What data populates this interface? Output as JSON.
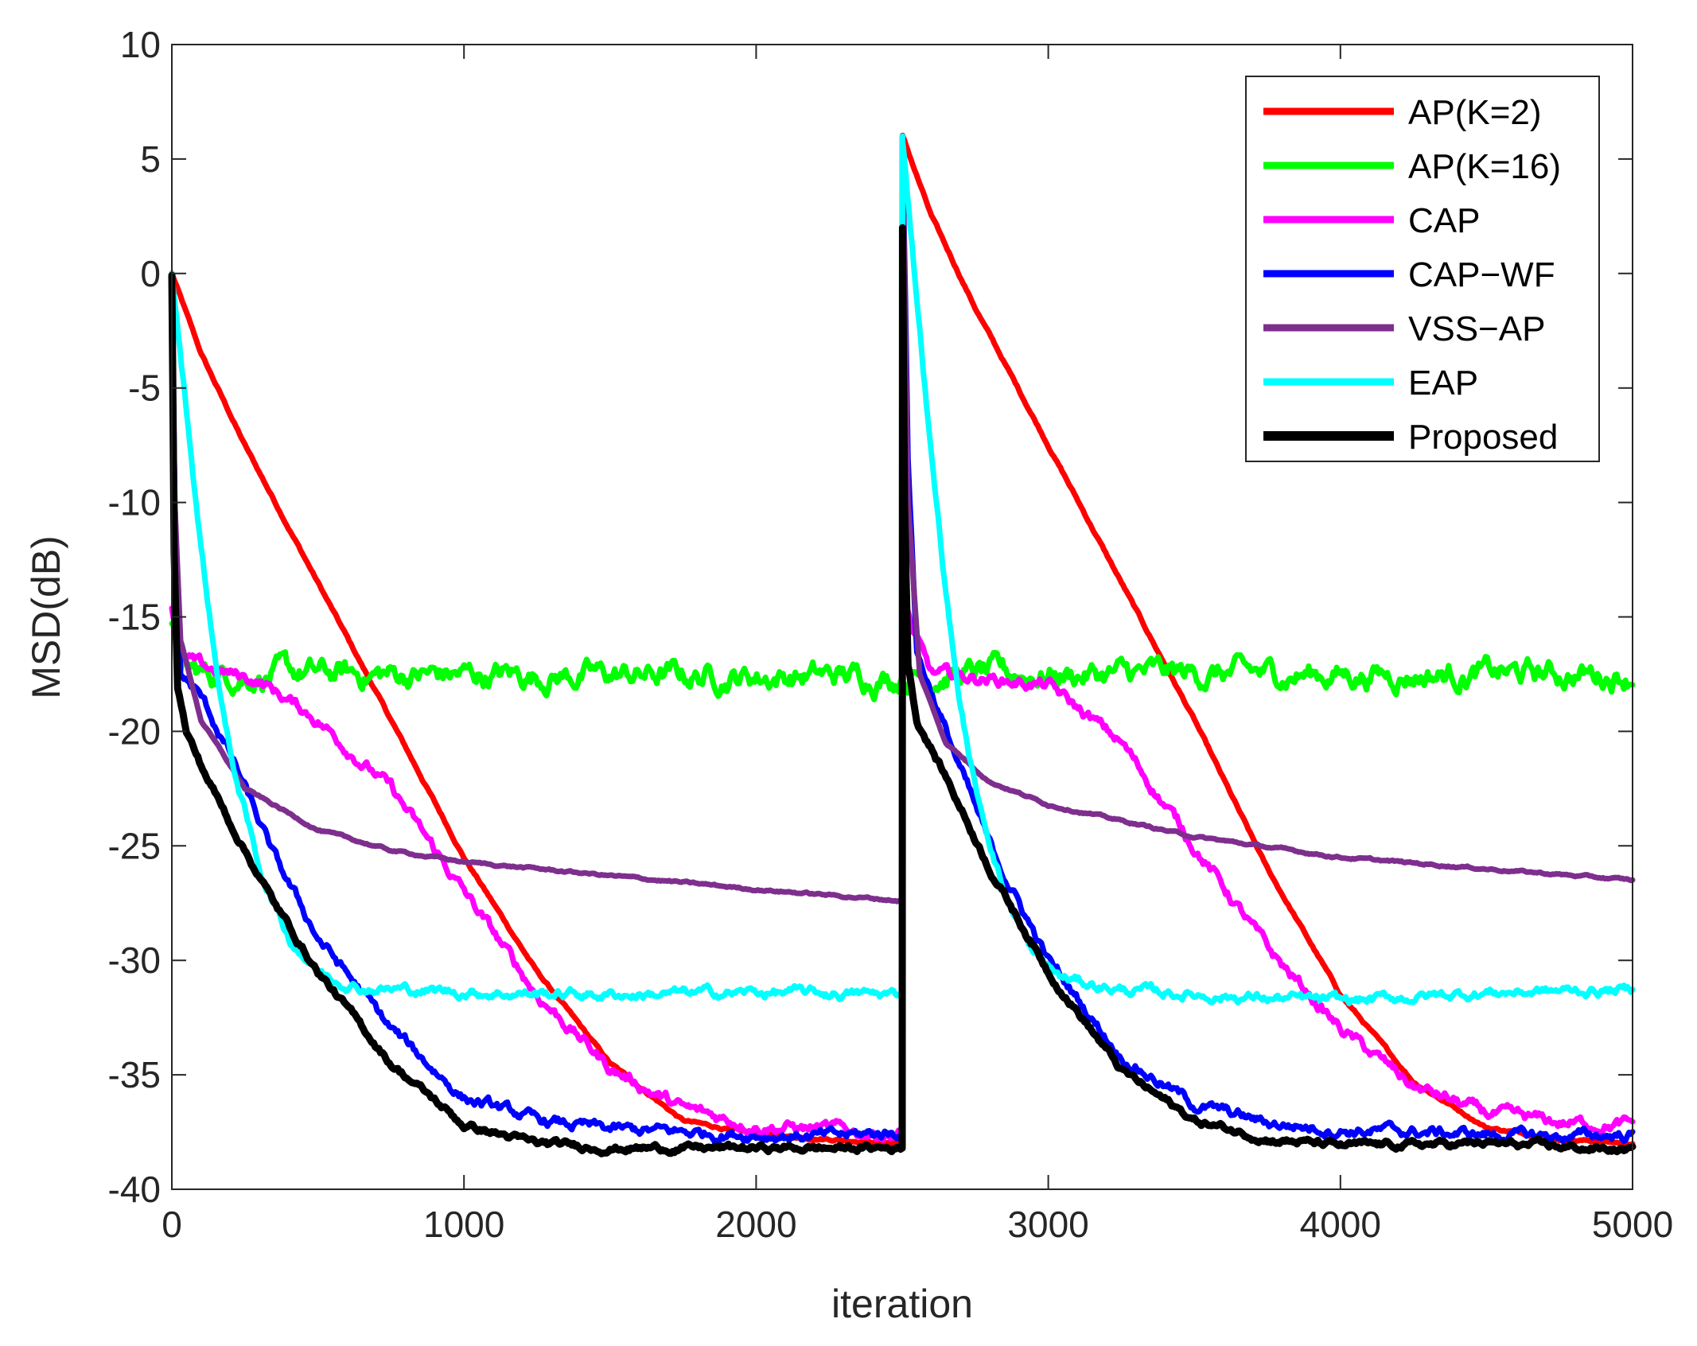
{
  "chart_data": {
    "type": "line",
    "title": "",
    "xlabel": "iteration",
    "ylabel": "MSD(dB)",
    "xlim": [
      0,
      5000
    ],
    "ylim": [
      -40,
      10
    ],
    "xticks": [
      0,
      1000,
      2000,
      3000,
      4000,
      5000
    ],
    "xtick_labels": [
      "0",
      "1000",
      "2000",
      "3000",
      "4000",
      "5000"
    ],
    "yticks": [
      -40,
      -35,
      -30,
      -25,
      -20,
      -15,
      -10,
      -5,
      0,
      5,
      10
    ],
    "ytick_labels": [
      "-40",
      "-35",
      "-30",
      "-25",
      "-20",
      "-15",
      "-10",
      "-5",
      "0",
      "5",
      "10"
    ],
    "grid": false,
    "legend_position": "top-right",
    "series": [
      {
        "name": "AP(K=2)",
        "color": "#ff0000",
        "noise": 0.05,
        "points": [
          [
            0,
            0
          ],
          [
            100,
            -3.5
          ],
          [
            250,
            -7.5
          ],
          [
            500,
            -13.5
          ],
          [
            750,
            -19.5
          ],
          [
            1000,
            -25.5
          ],
          [
            1250,
            -30.5
          ],
          [
            1500,
            -34.5
          ],
          [
            1750,
            -37
          ],
          [
            2000,
            -37.6
          ],
          [
            2250,
            -37.8
          ],
          [
            2500,
            -38
          ],
          [
            2501,
            6
          ],
          [
            2600,
            2.5
          ],
          [
            2750,
            -1.5
          ],
          [
            3000,
            -7.5
          ],
          [
            3250,
            -13.5
          ],
          [
            3500,
            -19.5
          ],
          [
            3750,
            -26
          ],
          [
            4000,
            -31.5
          ],
          [
            4250,
            -35.3
          ],
          [
            4500,
            -37.3
          ],
          [
            4750,
            -37.8
          ],
          [
            5000,
            -38
          ]
        ]
      },
      {
        "name": "AP(K=16)",
        "color": "#00ff00",
        "noise": 0.45,
        "points": [
          [
            0,
            -15.5
          ],
          [
            30,
            -17.3
          ],
          [
            100,
            -17.5
          ],
          [
            2500,
            -17.6
          ],
          [
            2501,
            -17.5
          ],
          [
            5000,
            -17.5
          ]
        ]
      },
      {
        "name": "CAP",
        "color": "#ff00ff",
        "noise": 0.22,
        "points": [
          [
            0,
            -14.5
          ],
          [
            30,
            -16.8
          ],
          [
            100,
            -17.2
          ],
          [
            300,
            -17.8
          ],
          [
            500,
            -19.5
          ],
          [
            750,
            -22.5
          ],
          [
            1000,
            -27
          ],
          [
            1250,
            -31.5
          ],
          [
            1500,
            -34.7
          ],
          [
            1750,
            -36.5
          ],
          [
            2000,
            -37.2
          ],
          [
            2250,
            -37.4
          ],
          [
            2500,
            -37.6
          ],
          [
            2501,
            -13.5
          ],
          [
            2530,
            -15.5
          ],
          [
            2600,
            -17.5
          ],
          [
            2800,
            -17.7
          ],
          [
            3000,
            -18
          ],
          [
            3250,
            -20.5
          ],
          [
            3500,
            -25
          ],
          [
            3750,
            -29.5
          ],
          [
            4000,
            -33
          ],
          [
            4250,
            -35.5
          ],
          [
            4500,
            -36.7
          ],
          [
            4750,
            -37.1
          ],
          [
            5000,
            -37.2
          ]
        ]
      },
      {
        "name": "CAP−WF",
        "color": "#0000ff",
        "noise": 0.2,
        "points": [
          [
            0,
            0
          ],
          [
            10,
            -10
          ],
          [
            30,
            -17.5
          ],
          [
            100,
            -18.5
          ],
          [
            200,
            -21
          ],
          [
            350,
            -25.5
          ],
          [
            500,
            -29
          ],
          [
            750,
            -33
          ],
          [
            1000,
            -36
          ],
          [
            1250,
            -37
          ],
          [
            1500,
            -37.4
          ],
          [
            1750,
            -37.5
          ],
          [
            2000,
            -37.6
          ],
          [
            2250,
            -37.7
          ],
          [
            2500,
            -37.5
          ],
          [
            2501,
            6
          ],
          [
            2520,
            -8
          ],
          [
            2550,
            -16.5
          ],
          [
            2650,
            -20
          ],
          [
            2800,
            -25
          ],
          [
            3000,
            -30
          ],
          [
            3250,
            -34.2
          ],
          [
            3500,
            -36.3
          ],
          [
            3750,
            -37.1
          ],
          [
            4000,
            -37.4
          ],
          [
            4250,
            -37.5
          ],
          [
            4500,
            -37.6
          ],
          [
            4750,
            -37.7
          ],
          [
            5000,
            -37.6
          ]
        ]
      },
      {
        "name": "VSS−AP",
        "color": "#7e2f8e",
        "noise": 0.04,
        "points": [
          [
            0,
            0
          ],
          [
            10,
            -10
          ],
          [
            30,
            -16
          ],
          [
            100,
            -19.5
          ],
          [
            250,
            -22.5
          ],
          [
            500,
            -24.3
          ],
          [
            750,
            -25.2
          ],
          [
            1000,
            -25.7
          ],
          [
            1500,
            -26.3
          ],
          [
            2000,
            -26.9
          ],
          [
            2500,
            -27.4
          ],
          [
            2501,
            6
          ],
          [
            2520,
            -10
          ],
          [
            2560,
            -17.5
          ],
          [
            2650,
            -20.5
          ],
          [
            2800,
            -22.2
          ],
          [
            3000,
            -23.2
          ],
          [
            3500,
            -24.6
          ],
          [
            4000,
            -25.5
          ],
          [
            4500,
            -26
          ],
          [
            5000,
            -26.5
          ]
        ]
      },
      {
        "name": "EAP",
        "color": "#00ffff",
        "noise": 0.18,
        "points": [
          [
            0,
            0
          ],
          [
            50,
            -6
          ],
          [
            100,
            -12
          ],
          [
            150,
            -17
          ],
          [
            200,
            -21
          ],
          [
            300,
            -26
          ],
          [
            400,
            -29
          ],
          [
            500,
            -30.5
          ],
          [
            650,
            -31.2
          ],
          [
            1000,
            -31.4
          ],
          [
            1500,
            -31.5
          ],
          [
            2000,
            -31.4
          ],
          [
            2500,
            -31.5
          ],
          [
            2501,
            6
          ],
          [
            2550,
            -1
          ],
          [
            2600,
            -8
          ],
          [
            2650,
            -14
          ],
          [
            2700,
            -19
          ],
          [
            2750,
            -22.5
          ],
          [
            2850,
            -27
          ],
          [
            2950,
            -29.8
          ],
          [
            3050,
            -30.8
          ],
          [
            3250,
            -31.3
          ],
          [
            3500,
            -31.5
          ],
          [
            4000,
            -31.8
          ],
          [
            4500,
            -31.4
          ],
          [
            5000,
            -31.3
          ]
        ]
      },
      {
        "name": "Proposed",
        "color": "#000000",
        "noise": 0.12,
        "points": [
          [
            0,
            0
          ],
          [
            8,
            -12
          ],
          [
            20,
            -18
          ],
          [
            50,
            -20
          ],
          [
            100,
            -21.5
          ],
          [
            200,
            -24
          ],
          [
            350,
            -27.5
          ],
          [
            500,
            -30.5
          ],
          [
            750,
            -34.5
          ],
          [
            1000,
            -37.2
          ],
          [
            1250,
            -38
          ],
          [
            1500,
            -38.2
          ],
          [
            2000,
            -38.2
          ],
          [
            2500,
            -38.2
          ],
          [
            2501,
            2
          ],
          [
            2508,
            -10
          ],
          [
            2520,
            -17
          ],
          [
            2550,
            -19.5
          ],
          [
            2650,
            -22
          ],
          [
            2800,
            -26
          ],
          [
            3000,
            -30.5
          ],
          [
            3250,
            -34.8
          ],
          [
            3500,
            -37
          ],
          [
            3750,
            -37.8
          ],
          [
            4000,
            -38.1
          ],
          [
            4500,
            -38
          ],
          [
            5000,
            -38.3
          ]
        ]
      }
    ]
  }
}
